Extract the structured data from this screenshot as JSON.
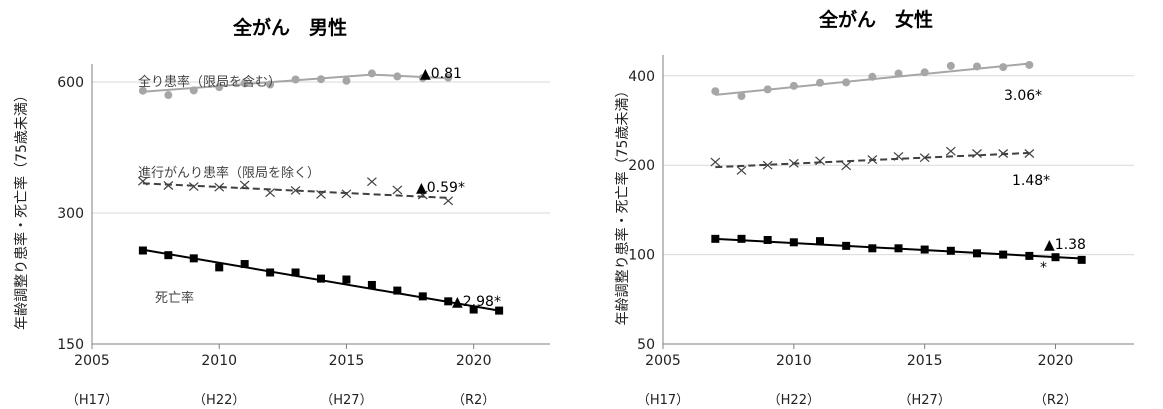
{
  "chart_data": [
    {
      "type": "line",
      "title": "全がん　男性",
      "ylabel": "年齢調整り患率・死亡率（75歳未満）",
      "y_scale": "log",
      "ylim": [
        150,
        660
      ],
      "xlim": [
        2005,
        2023
      ],
      "x_ticks": [
        2005,
        2010,
        2015,
        2020
      ],
      "x_era_labels": [
        "（H17）",
        "（H22）",
        "（H27）",
        "（R2）"
      ],
      "y_ticks": [
        150,
        300,
        600
      ],
      "series": [
        {
          "note": "全り患率（限局を含む）",
          "marker": "circle",
          "color": "#a6a6a6",
          "trend_style": "solid",
          "x": [
            2007,
            2008,
            2009,
            2010,
            2011,
            2012,
            2013,
            2014,
            2015,
            2016,
            2017,
            2018,
            2019
          ],
          "values": [
            573,
            560,
            574,
            584,
            596,
            592,
            608,
            609,
            604,
            628,
            618,
            613,
            614
          ],
          "trend": {
            "x": [
              2007,
              2016,
              2019
            ],
            "y": [
              570,
              624,
              612
            ]
          },
          "annotation": "▲0.81"
        },
        {
          "note": "進行がんり患率（限局を除く）",
          "marker": "x",
          "color": "#404040",
          "trend_style": "dashed",
          "x": [
            2007,
            2008,
            2009,
            2010,
            2011,
            2012,
            2013,
            2014,
            2015,
            2016,
            2017,
            2018,
            2019
          ],
          "values": [
            355,
            347,
            345,
            344,
            348,
            334,
            338,
            331,
            332,
            354,
            339,
            330,
            320
          ],
          "trend": {
            "x": [
              2007,
              2019
            ],
            "y": [
              351,
              325
            ]
          },
          "annotation": "▲0.59*"
        },
        {
          "note": "死亡率",
          "marker": "square",
          "color": "#000000",
          "trend_style": "solid",
          "x": [
            2007,
            2008,
            2009,
            2010,
            2011,
            2012,
            2013,
            2014,
            2015,
            2016,
            2017,
            2018,
            2019,
            2020,
            2021
          ],
          "values": [
            246,
            240,
            236,
            225,
            229,
            219,
            219,
            212,
            211,
            205,
            199,
            193,
            188,
            180,
            179
          ],
          "trend": {
            "x": [
              2007,
              2021
            ],
            "y": [
              247,
              179
            ]
          },
          "annotation": "▲2.98*"
        }
      ]
    },
    {
      "type": "line",
      "title": "全がん　女性",
      "ylabel": "年齢調整り患率・死亡率（75歳未満）",
      "y_scale": "log",
      "ylim": [
        50,
        470
      ],
      "xlim": [
        2005,
        2023
      ],
      "x_ticks": [
        2005,
        2010,
        2015,
        2020
      ],
      "x_era_labels": [
        "（H17）",
        "（H22）",
        "（H27）",
        "（R2）"
      ],
      "y_ticks": [
        50,
        100,
        200,
        400
      ],
      "series": [
        {
          "marker": "circle",
          "color": "#a6a6a6",
          "trend_style": "solid",
          "x": [
            2007,
            2008,
            2009,
            2010,
            2011,
            2012,
            2013,
            2014,
            2015,
            2016,
            2017,
            2018,
            2019
          ],
          "values": [
            355,
            342,
            360,
            370,
            379,
            380,
            397,
            407,
            411,
            432,
            430,
            428,
            435
          ],
          "trend": {
            "x": [
              2007,
              2019
            ],
            "y": [
              345,
              440
            ]
          },
          "annotation": "3.06*"
        },
        {
          "marker": "x",
          "color": "#404040",
          "trend_style": "dashed",
          "x": [
            2007,
            2008,
            2009,
            2010,
            2011,
            2012,
            2013,
            2014,
            2015,
            2016,
            2017,
            2018,
            2019
          ],
          "values": [
            205,
            192,
            200,
            203,
            207,
            199,
            209,
            214,
            212,
            223,
            219,
            219,
            219
          ],
          "trend": {
            "x": [
              2007,
              2019
            ],
            "y": [
              197,
              220
            ]
          },
          "annotation": "1.48*"
        },
        {
          "marker": "square",
          "color": "#000000",
          "trend_style": "solid",
          "x": [
            2007,
            2008,
            2009,
            2010,
            2011,
            2012,
            2013,
            2014,
            2015,
            2016,
            2017,
            2018,
            2019,
            2020,
            2021
          ],
          "values": [
            113,
            113,
            112,
            110,
            111,
            107,
            105,
            105,
            104,
            103,
            101,
            100,
            99,
            98,
            96
          ],
          "trend": {
            "x": [
              2007,
              2021
            ],
            "y": [
              113,
              97
            ]
          },
          "annotation": "▲1.38",
          "annotation_note": "*"
        }
      ]
    }
  ]
}
